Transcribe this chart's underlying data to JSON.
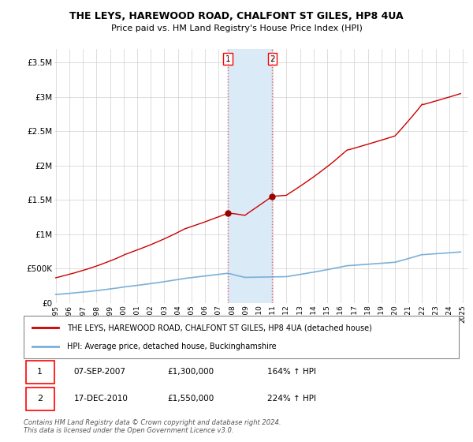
{
  "title": "THE LEYS, HAREWOOD ROAD, CHALFONT ST GILES, HP8 4UA",
  "subtitle": "Price paid vs. HM Land Registry's House Price Index (HPI)",
  "ylim": [
    0,
    3700000
  ],
  "yticks": [
    0,
    500000,
    1000000,
    1500000,
    2000000,
    2500000,
    3000000,
    3500000
  ],
  "hpi_color": "#7ab0d8",
  "price_color": "#cc0000",
  "shade_color": "#daeaf7",
  "transaction1": {
    "date": 2007.69,
    "price": 1300000,
    "label": "1"
  },
  "transaction2": {
    "date": 2010.96,
    "price": 1550000,
    "label": "2"
  },
  "legend_line1": "THE LEYS, HAREWOOD ROAD, CHALFONT ST GILES, HP8 4UA (detached house)",
  "legend_line2": "HPI: Average price, detached house, Buckinghamshire",
  "table_row1": [
    "1",
    "07-SEP-2007",
    "£1,300,000",
    "164% ↑ HPI"
  ],
  "table_row2": [
    "2",
    "17-DEC-2010",
    "£1,550,000",
    "224% ↑ HPI"
  ],
  "footnote": "Contains HM Land Registry data © Crown copyright and database right 2024.\nThis data is licensed under the Open Government Licence v3.0."
}
